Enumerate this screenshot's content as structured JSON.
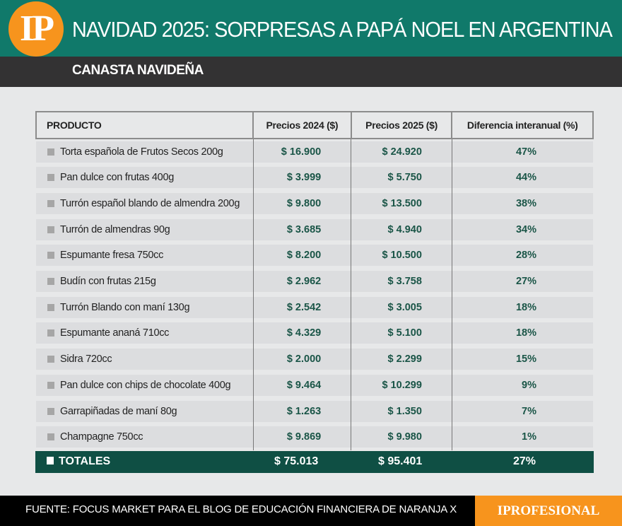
{
  "header": {
    "logo": "IP",
    "title": "NAVIDAD 2025: SORPRESAS A PAPÁ NOEL EN ARGENTINA",
    "subtitle": "CANASTA NAVIDEÑA"
  },
  "colors": {
    "header": "#10796a",
    "subheader": "#333233",
    "accent": "#f7941d",
    "totals": "#0f4f44",
    "values": "#1a5547"
  },
  "chart_data": {
    "type": "table",
    "columns": [
      "PRODUCTO",
      "Precios 2024 ($)",
      "Precios 2025 ($)",
      "Diferencia interanual (%)"
    ],
    "rows": [
      [
        "Torta española de Frutos Secos 200g",
        "$ 16.900",
        "$ 24.920",
        "47%"
      ],
      [
        "Pan dulce con frutas 400g",
        "$ 3.999",
        "$ 5.750",
        "44%"
      ],
      [
        "Turrón español blando de almendra 200g",
        "$ 9.800",
        "$ 13.500",
        "38%"
      ],
      [
        "Turrón de almendras 90g",
        "$ 3.685",
        "$ 4.940",
        "34%"
      ],
      [
        "Espumante fresa 750cc",
        "$ 8.200",
        "$ 10.500",
        "28%"
      ],
      [
        "Budín con frutas 215g",
        "$ 2.962",
        "$ 3.758",
        "27%"
      ],
      [
        "Turrón Blando con maní 130g",
        "$ 2.542",
        "$ 3.005",
        "18%"
      ],
      [
        "Espumante ananá 710cc",
        "$ 4.329",
        "$ 5.100",
        "18%"
      ],
      [
        "Sidra 720cc",
        "$ 2.000",
        "$ 2.299",
        "15%"
      ],
      [
        "Pan dulce con chips de chocolate 400g",
        "$ 9.464",
        "$ 10.299",
        "9%"
      ],
      [
        "Garrapiñadas de maní 80g",
        "$ 1.263",
        "$ 1.350",
        "7%"
      ],
      [
        "Champagne 750cc",
        "$ 9.869",
        "$ 9.980",
        "1%"
      ]
    ],
    "totals": [
      "TOTALES",
      "$ 75.013",
      "$ 95.401",
      "27%"
    ]
  },
  "footer": {
    "source": "FUENTE: FOCUS MARKET PARA EL BLOG DE EDUCACIÓN FINANCIERA DE NARANJA X",
    "brand": "IPROFESIONAL"
  }
}
